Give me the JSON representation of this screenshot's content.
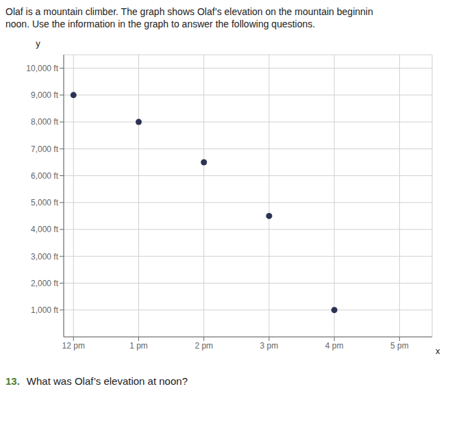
{
  "chart_data": {
    "type": "scatter",
    "title": "Olaf is a mountain climber. The graph shows Olaf’s elevation on the mountain beginnin\nnoon. Use the information in the graph to answer the following questions.",
    "x_label": "x",
    "y_label": "y",
    "x": [
      0,
      1,
      2,
      3,
      4
    ],
    "values": [
      9000,
      8000,
      6500,
      4500,
      1000
    ],
    "color": "#2c3354",
    "xlim": [
      -0.15,
      5.5
    ],
    "xticks": [
      {
        "value": 0,
        "label": "12 pm"
      },
      {
        "value": 1,
        "label": "1 pm"
      },
      {
        "value": 2,
        "label": "2 pm"
      },
      {
        "value": 3,
        "label": "3 pm"
      },
      {
        "value": 4,
        "label": "4 pm"
      },
      {
        "value": 5,
        "label": "5 pm"
      }
    ],
    "ylim": [
      0,
      10500
    ],
    "yticks": [
      {
        "value": 1000,
        "label": "1,000 ft"
      },
      {
        "value": 2000,
        "label": "2,000 ft"
      },
      {
        "value": 3000,
        "label": "3,000 ft"
      },
      {
        "value": 4000,
        "label": "4,000 ft"
      },
      {
        "value": 5000,
        "label": "5,000 ft"
      },
      {
        "value": 6000,
        "label": "6,000 ft"
      },
      {
        "value": 7000,
        "label": "7,000 ft"
      },
      {
        "value": 8000,
        "label": "8,000 ft"
      },
      {
        "value": 9000,
        "label": "9,000 ft"
      },
      {
        "value": 10000,
        "label": "10,000 ft"
      }
    ],
    "grid": true,
    "annotations": [
      {
        "text": "13.",
        "color": "#4a7c2f"
      },
      {
        "text": "What was Olaf’s elevation at noon?"
      }
    ]
  }
}
